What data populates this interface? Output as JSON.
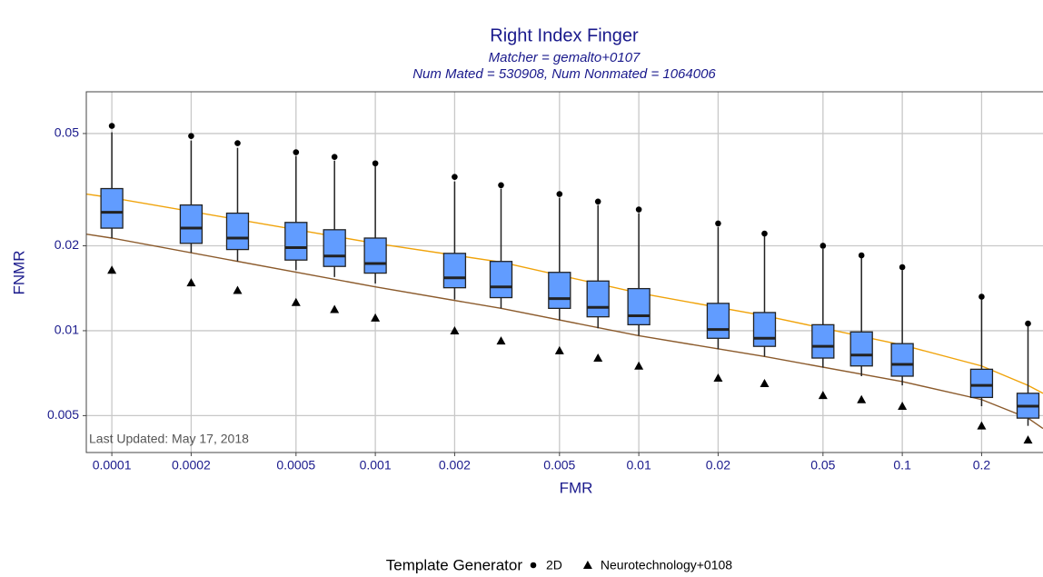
{
  "chart_data": {
    "type": "box",
    "title": "Right Index Finger",
    "subtitle": [
      "Matcher = gemalto+0107",
      "Num Mated = 530908, Num Nonmated = 1064006"
    ],
    "x_label": "FMR",
    "y_label": "FNMR",
    "annotation": "Last Updated: May 17, 2018",
    "legend_title": "Template Generator",
    "xlog": true,
    "ylog": true,
    "grid": true,
    "box_color": "#619cff",
    "xlim": [
      8e-05,
      0.342
    ],
    "ylim": [
      0.0037,
      0.0703
    ],
    "xticks": [
      0.0001,
      0.0002,
      0.0005,
      0.001,
      0.002,
      0.005,
      0.01,
      0.02,
      0.05,
      0.1,
      0.2
    ],
    "yticks": [
      0.005,
      0.01,
      0.02,
      0.05
    ],
    "x": [
      0.0001,
      0.0002,
      0.0003,
      0.0005,
      0.0007,
      0.001,
      0.002,
      0.003,
      0.005,
      0.007,
      0.01,
      0.02,
      0.03,
      0.05,
      0.07,
      0.1,
      0.2,
      0.3
    ],
    "whisker_high": [
      0.0505,
      0.0472,
      0.0445,
      0.0416,
      0.0401,
      0.0384,
      0.0338,
      0.0319,
      0.0296,
      0.0279,
      0.0261,
      0.0233,
      0.0217,
      0.0195,
      0.0181,
      0.0164,
      0.0129,
      0.0104
    ],
    "q3": [
      0.0319,
      0.0279,
      0.0261,
      0.0242,
      0.0228,
      0.0213,
      0.0188,
      0.0176,
      0.0161,
      0.015,
      0.0141,
      0.0125,
      0.0116,
      0.0105,
      0.0099,
      0.009,
      0.0073,
      0.006
    ],
    "median": [
      0.0263,
      0.0231,
      0.0213,
      0.0197,
      0.0184,
      0.0173,
      0.0154,
      0.0143,
      0.013,
      0.0121,
      0.0113,
      0.0101,
      0.0094,
      0.0088,
      0.0082,
      0.0076,
      0.0064,
      0.0054
    ],
    "q1": [
      0.0231,
      0.0204,
      0.0194,
      0.0178,
      0.0169,
      0.016,
      0.0142,
      0.0131,
      0.012,
      0.0112,
      0.0105,
      0.0094,
      0.0088,
      0.008,
      0.0075,
      0.0069,
      0.0058,
      0.0049
    ],
    "whisker_low": [
      0.0213,
      0.0189,
      0.0176,
      0.0164,
      0.0155,
      0.0147,
      0.0129,
      0.012,
      0.0109,
      0.0102,
      0.0096,
      0.0086,
      0.0081,
      0.0074,
      0.0069,
      0.0064,
      0.0054,
      0.0046
    ],
    "series": [
      {
        "name": "2D",
        "marker": "circle",
        "color": "#000000",
        "values": [
          0.0532,
          0.049,
          0.0462,
          0.0429,
          0.0413,
          0.0392,
          0.0351,
          0.0328,
          0.0305,
          0.0287,
          0.0269,
          0.024,
          0.0221,
          0.02,
          0.0185,
          0.0168,
          0.0132,
          0.0106
        ]
      },
      {
        "name": "Neurotechnology+0108",
        "marker": "triangle",
        "color": "#000000",
        "values": [
          0.0164,
          0.0148,
          0.0139,
          0.0126,
          0.0119,
          0.0111,
          0.01,
          0.0092,
          0.0085,
          0.008,
          0.0075,
          0.0068,
          0.0065,
          0.0059,
          0.0057,
          0.0054,
          0.0046,
          0.0041
        ]
      }
    ],
    "lines": [
      {
        "color": "#f0a30a",
        "x": [
          8e-05,
          0.0001,
          0.001,
          0.003,
          0.01,
          0.03,
          0.1,
          0.2,
          0.3,
          0.342
        ],
        "values": [
          0.0305,
          0.0296,
          0.0204,
          0.0175,
          0.0136,
          0.0113,
          0.0089,
          0.0075,
          0.0064,
          0.006
        ]
      },
      {
        "color": "#8b5a2b",
        "x": [
          8e-05,
          0.0001,
          0.001,
          0.003,
          0.01,
          0.03,
          0.1,
          0.2,
          0.3,
          0.342
        ],
        "values": [
          0.022,
          0.0213,
          0.0143,
          0.012,
          0.0096,
          0.0081,
          0.0066,
          0.0057,
          0.0049,
          0.0045
        ]
      }
    ]
  }
}
